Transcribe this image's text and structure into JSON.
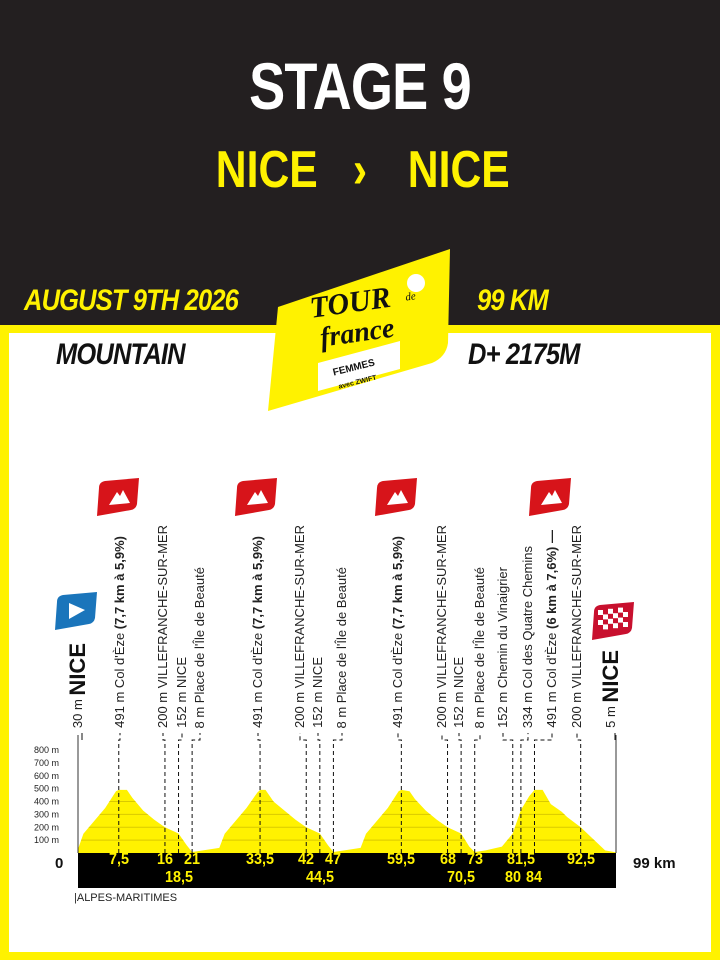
{
  "header": {
    "stage": "STAGE 9",
    "start": "NICE",
    "separator": "›",
    "finish": "NICE",
    "date": "AUGUST 9TH 2026",
    "distance": "99 KM",
    "stage_type": "MOUNTAIN",
    "elevation_gain": "D+ 2175M"
  },
  "logo": {
    "line1": "TOUR",
    "line2": "de",
    "line3": "france",
    "sub1": "FEMMES",
    "sub2": "avec ZWIFT"
  },
  "colors": {
    "dark": "#231f20",
    "yellow": "#fff200",
    "climb_flag": "#d7141a",
    "start_flag": "#1a75bb"
  },
  "region": "|ALPES-MARITIMES",
  "chart_data": {
    "type": "area",
    "title": "",
    "xlabel": "",
    "ylabel": "",
    "xlim": [
      0,
      99
    ],
    "ylim": [
      0,
      800
    ],
    "x_start_label": "0",
    "x_end_label": "99 km",
    "y_ticks": [
      "100 m",
      "200 m",
      "300 m",
      "400 m",
      "500 m",
      "600 m",
      "700 m",
      "800 m"
    ],
    "profile": [
      [
        0,
        30
      ],
      [
        1,
        150
      ],
      [
        3,
        250
      ],
      [
        5,
        350
      ],
      [
        7,
        480
      ],
      [
        7.5,
        491
      ],
      [
        9,
        491
      ],
      [
        10,
        430
      ],
      [
        12,
        330
      ],
      [
        14,
        260
      ],
      [
        16,
        200
      ],
      [
        18.5,
        152
      ],
      [
        20,
        60
      ],
      [
        21,
        8
      ],
      [
        23,
        20
      ],
      [
        26,
        40
      ],
      [
        27,
        150
      ],
      [
        29,
        250
      ],
      [
        31,
        350
      ],
      [
        33,
        470
      ],
      [
        33.5,
        491
      ],
      [
        34.5,
        491
      ],
      [
        36,
        400
      ],
      [
        38,
        330
      ],
      [
        40,
        260
      ],
      [
        42,
        200
      ],
      [
        44.5,
        152
      ],
      [
        46,
        60
      ],
      [
        47,
        8
      ],
      [
        49,
        20
      ],
      [
        52,
        40
      ],
      [
        53,
        150
      ],
      [
        55,
        250
      ],
      [
        57,
        350
      ],
      [
        59,
        480
      ],
      [
        59.5,
        491
      ],
      [
        61,
        480
      ],
      [
        62,
        420
      ],
      [
        64,
        330
      ],
      [
        66,
        260
      ],
      [
        68,
        200
      ],
      [
        70.5,
        152
      ],
      [
        72,
        50
      ],
      [
        73,
        8
      ],
      [
        75,
        20
      ],
      [
        78,
        50
      ],
      [
        80,
        152
      ],
      [
        81.5,
        334
      ],
      [
        83,
        440
      ],
      [
        84,
        491
      ],
      [
        85.5,
        491
      ],
      [
        87,
        380
      ],
      [
        89,
        320
      ],
      [
        90,
        280
      ],
      [
        92.5,
        200
      ],
      [
        95,
        100
      ],
      [
        97,
        20
      ],
      [
        99,
        5
      ]
    ],
    "waypoints": [
      {
        "km": null,
        "km_label": "",
        "elev": "30 m",
        "name": "NICE",
        "type": "start"
      },
      {
        "km": 7.5,
        "km_label": "7,5",
        "elev": "491 m",
        "name": "Col d'Èze",
        "climb": "(7,7 km à 5,9%)",
        "type": "climb"
      },
      {
        "km": 16,
        "km_label": "16",
        "elev": "200 m",
        "name": "VILLEFRANCHE-SUR-MER"
      },
      {
        "km": 18.5,
        "km_label": "18,5",
        "elev": "152 m",
        "name": "NICE"
      },
      {
        "km": 21,
        "km_label": "21",
        "elev": "8 m",
        "name": "Place de l'Île de Beauté"
      },
      {
        "km": 33.5,
        "km_label": "33,5",
        "elev": "491 m",
        "name": "Col d'Èze",
        "climb": "(7,7 km à 5,9%)",
        "type": "climb"
      },
      {
        "km": 42,
        "km_label": "42",
        "elev": "200 m",
        "name": "VILLEFRANCHE-SUR-MER"
      },
      {
        "km": 44.5,
        "km_label": "44,5",
        "elev": "152 m",
        "name": "NICE"
      },
      {
        "km": 47,
        "km_label": "47",
        "elev": "8 m",
        "name": "Place de l'Île de Beauté"
      },
      {
        "km": 59.5,
        "km_label": "59,5",
        "elev": "491 m",
        "name": "Col d'Èze",
        "climb": "(7,7 km à 5,9%)",
        "type": "climb"
      },
      {
        "km": 68,
        "km_label": "68",
        "elev": "200 m",
        "name": "VILLEFRANCHE-SUR-MER"
      },
      {
        "km": 70.5,
        "km_label": "70,5",
        "elev": "152 m",
        "name": "NICE"
      },
      {
        "km": 73,
        "km_label": "73",
        "elev": "8 m",
        "name": "Place de l'Île de Beauté"
      },
      {
        "km": 80,
        "km_label": "80",
        "elev": "152 m",
        "name": "Chemin du Vinaigrier"
      },
      {
        "km": 81.5,
        "km_label": "81,5",
        "elev": "334 m",
        "name": "Col des Quatre Chemins"
      },
      {
        "km": 84,
        "km_label": "84",
        "elev": "491 m",
        "name": "Col d'Èze",
        "climb": "(6 km à 7,6%) —",
        "type": "climb"
      },
      {
        "km": 92.5,
        "km_label": "92,5",
        "elev": "200 m",
        "name": "VILLEFRANCHE-SUR-MER"
      },
      {
        "km": 99,
        "km_label": "",
        "elev": "5 m",
        "name": "NICE",
        "type": "finish"
      }
    ]
  }
}
